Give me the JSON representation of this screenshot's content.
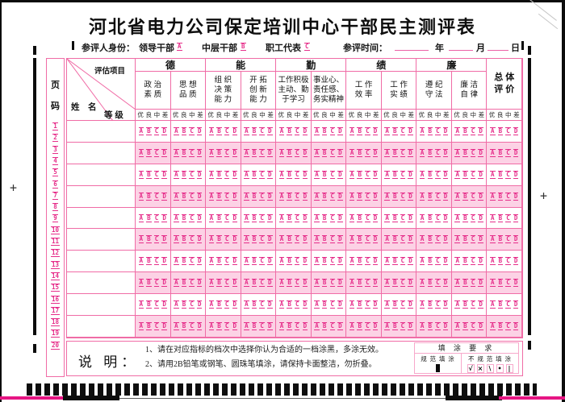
{
  "title": "河北省电力公司保定培训中心干部民主测评表",
  "identity": {
    "label": "参评人身份：",
    "options": [
      {
        "label": "领导干部",
        "bubble": "A"
      },
      {
        "label": "中层干部",
        "bubble": "B"
      },
      {
        "label": "职工代表",
        "bubble": "C"
      }
    ],
    "time_label": "参评时间：",
    "time_units": [
      "年",
      "月",
      "日"
    ]
  },
  "page_column": {
    "header": [
      "页",
      "码"
    ],
    "numbers": [
      "1",
      "2",
      "3",
      "4",
      "5",
      "6",
      "7",
      "8",
      "9",
      "10",
      "11",
      "12",
      "13",
      "14",
      "15",
      "16",
      "17",
      "18",
      "19",
      "20"
    ]
  },
  "table": {
    "corner": {
      "top": "评估项目",
      "middle": "等 级",
      "bottom": "姓　名"
    },
    "groups": [
      {
        "name": "德",
        "criteria": [
          {
            "name": "政治素质",
            "lines": [
              "政 治",
              "素 质"
            ]
          },
          {
            "name": "思想品质",
            "lines": [
              "思 想",
              "品 质"
            ]
          }
        ]
      },
      {
        "name": "能",
        "criteria": [
          {
            "name": "组织决策能力",
            "lines": [
              "组 织",
              "决 策",
              "能 力"
            ]
          },
          {
            "name": "开拓创新能力",
            "lines": [
              "开 拓",
              "创 新",
              "能 力"
            ]
          }
        ]
      },
      {
        "name": "勤",
        "criteria": [
          {
            "name": "工作积极主动勤于学习",
            "lines": [
              "工作积极",
              "主动、勤",
              "于学习"
            ]
          },
          {
            "name": "事业心责任感务实精神",
            "lines": [
              "事业心、",
              "责任感、",
              "务实精神"
            ]
          }
        ]
      },
      {
        "name": "绩",
        "criteria": [
          {
            "name": "工作效率",
            "lines": [
              "工 作",
              "效 率"
            ]
          },
          {
            "name": "工作实绩",
            "lines": [
              "工 作",
              "实 绩"
            ]
          }
        ]
      },
      {
        "name": "廉",
        "criteria": [
          {
            "name": "遵纪守法",
            "lines": [
              "遵 纪",
              "守 法"
            ]
          },
          {
            "name": "廉洁自律",
            "lines": [
              "廉 洁",
              "自 律"
            ]
          }
        ]
      }
    ],
    "overall": {
      "name": "总体评价",
      "lines": [
        "总 体",
        "评 价"
      ]
    },
    "grade_options": [
      "优",
      "良",
      "中",
      "差"
    ],
    "bubble_options": [
      "A",
      "B",
      "C",
      "D"
    ],
    "row_count": 10
  },
  "instructions": {
    "label": "说 明：",
    "lines": [
      "1、请在对应指标的档次中选择你认为合适的一档涂黑，多涂无效。",
      "2、请用2B铅笔或钢笔、圆珠笔填涂，请保持卡面整洁，勿折叠。"
    ]
  },
  "fill_requirements": {
    "title": "填 涂 要 求",
    "standard_label": "规 范 填 涂",
    "nonstandard_label": "不 规 范 填 涂",
    "nonstandard_marks": [
      "√",
      "×",
      "\\",
      "•",
      "|"
    ]
  },
  "colors": {
    "accent_pink": "#f06ca6",
    "bubble_magenta": "#e62e8a",
    "row_fill": "#fcd2e5",
    "ink": "#151515"
  }
}
